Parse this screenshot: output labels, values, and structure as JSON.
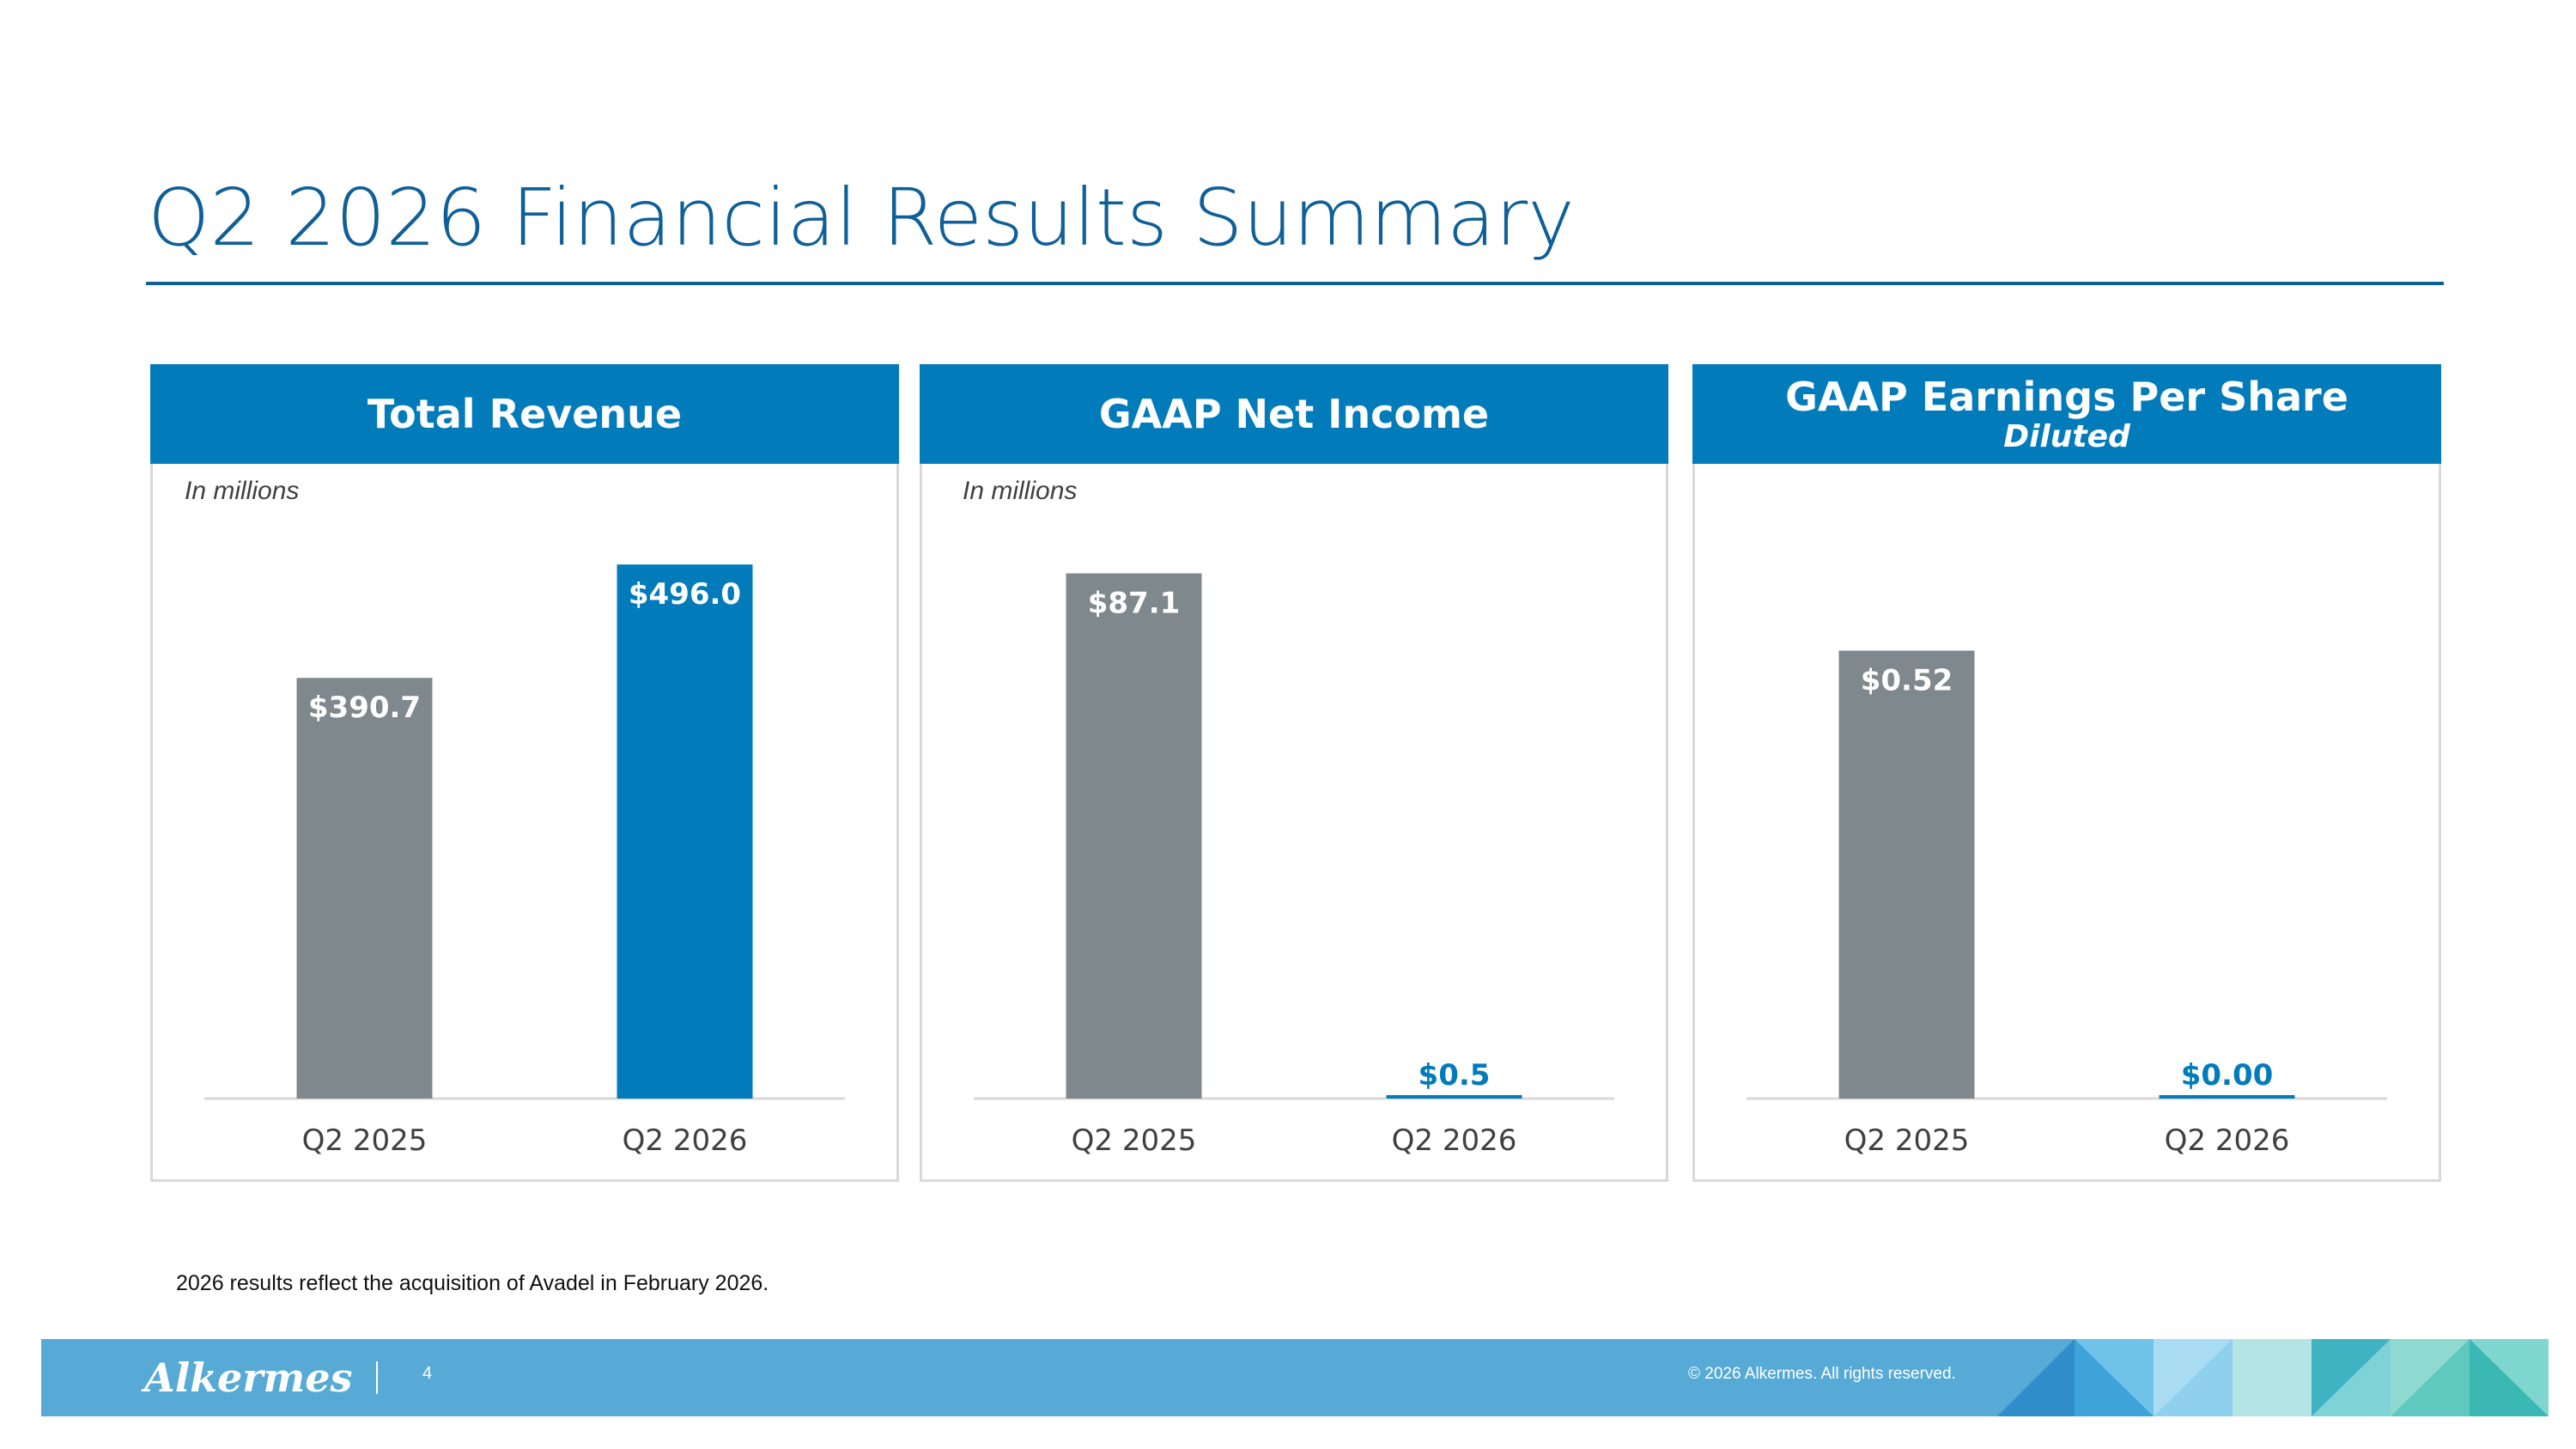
{
  "slide": {
    "title": "Q2 2026 Financial Results Summary",
    "footnote": "2026 results reflect the acquisition of Avadel in February 2026.",
    "page_number": "4",
    "copyright": "© 2026 Alkermes. All rights reserved.",
    "brand": "Alkermes"
  },
  "colors": {
    "title": "#0f5f98",
    "header": "#027bbb",
    "prior_bar": "#7f888d",
    "current_bar": "#027bbb",
    "footer": "#57aad6"
  },
  "panels": [
    {
      "title": "Total Revenue",
      "subtitle": "",
      "unit_note": "In millions"
    },
    {
      "title": "GAAP Net Income",
      "subtitle": "",
      "unit_note": "In millions"
    },
    {
      "title": "GAAP Earnings Per Share",
      "subtitle": "Diluted",
      "unit_note": ""
    }
  ],
  "chart_data": [
    {
      "type": "bar",
      "title": "Total Revenue",
      "categories": [
        "Q2 2025",
        "Q2 2026"
      ],
      "values": [
        390.7,
        496.0
      ],
      "labels": [
        "$390.7",
        "$496.0"
      ],
      "ylim": [
        0,
        560
      ]
    },
    {
      "type": "bar",
      "title": "GAAP Net Income",
      "categories": [
        "Q2 2025",
        "Q2 2026"
      ],
      "values": [
        87.1,
        0.5
      ],
      "labels": [
        "$87.1",
        "$0.5"
      ],
      "ylim": [
        0,
        100
      ]
    },
    {
      "type": "bar",
      "title": "GAAP Earnings Per Share",
      "subtitle": "Diluted",
      "categories": [
        "Q2 2025",
        "Q2 2026"
      ],
      "values": [
        0.52,
        0.0
      ],
      "labels": [
        "$0.52",
        "$0.00"
      ],
      "ylim": [
        0,
        0.7
      ]
    }
  ]
}
